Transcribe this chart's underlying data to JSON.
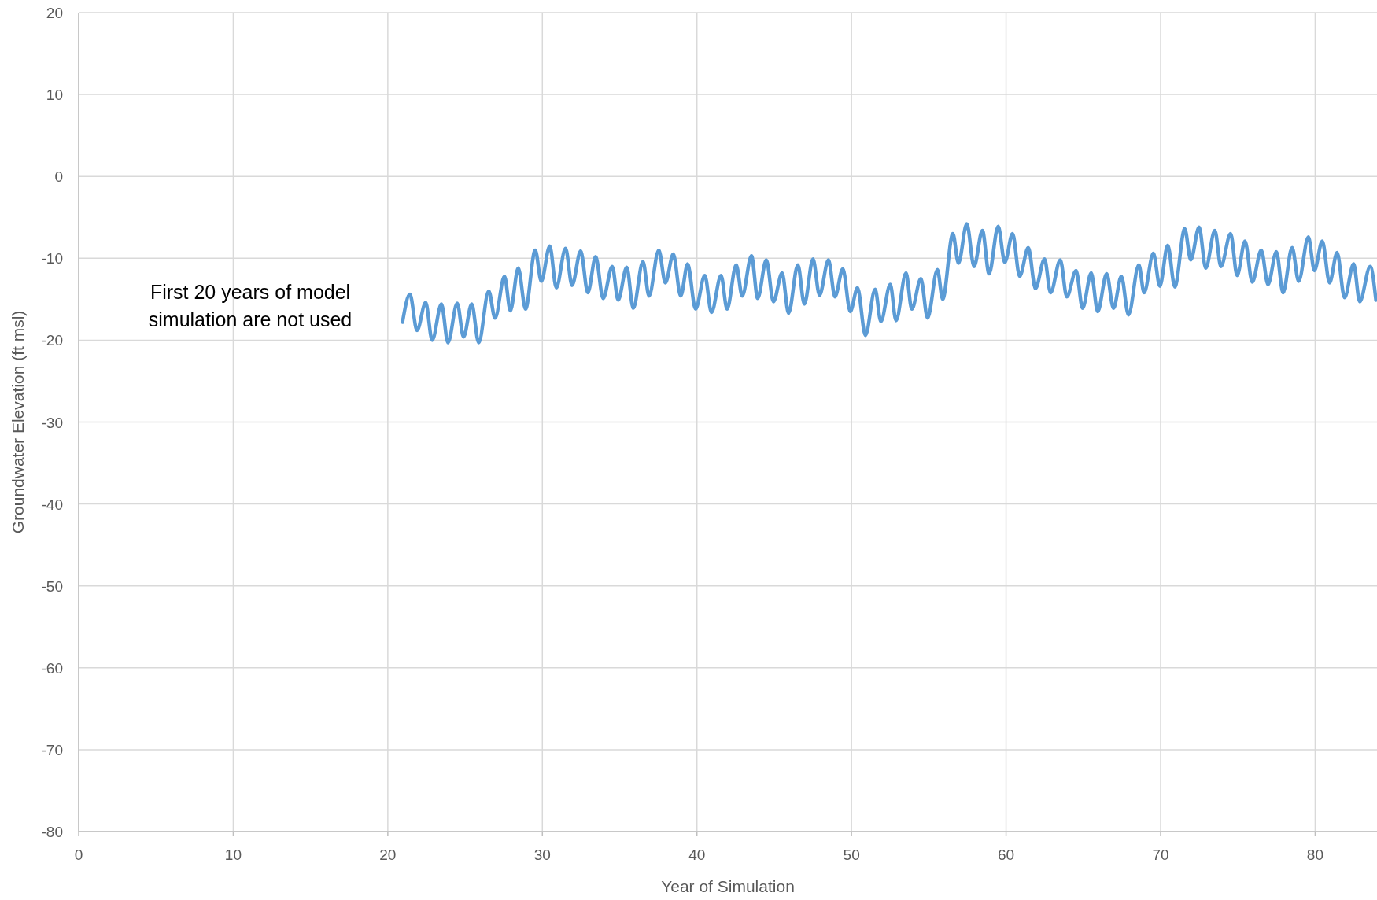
{
  "chart_data": {
    "type": "line",
    "xlabel": "Year of Simulation",
    "ylabel": "Groundwater Elevation (ft msl)",
    "annotations": [
      "First 20 years of model\nsimulation are not used"
    ],
    "xlim": [
      0,
      84
    ],
    "xticks": [
      0,
      10,
      20,
      30,
      40,
      50,
      60,
      70,
      80
    ],
    "ylim": [
      -80,
      20
    ],
    "yticks": [
      -80,
      -70,
      -60,
      -50,
      -40,
      -30,
      -20,
      -10,
      0,
      10,
      20
    ],
    "grid": true,
    "marker": "none",
    "line_style": "solid",
    "series": [
      {
        "color": "#5b9bd5",
        "x": [
          20.95,
          21.43,
          21.89,
          22.45,
          22.87,
          23.47,
          23.89,
          24.49,
          24.9,
          25.43,
          25.88,
          26.53,
          26.94,
          27.55,
          27.93,
          28.44,
          28.91,
          29.54,
          29.93,
          30.48,
          30.9,
          31.5,
          31.92,
          32.48,
          32.94,
          33.45,
          33.93,
          34.52,
          34.9,
          35.46,
          35.88,
          36.51,
          36.9,
          37.53,
          37.96,
          38.47,
          38.95,
          39.4,
          39.91,
          40.51,
          40.94,
          41.56,
          41.95,
          42.54,
          42.93,
          43.53,
          43.93,
          44.49,
          44.95,
          45.51,
          45.93,
          46.53,
          46.95,
          47.51,
          47.93,
          48.51,
          48.93,
          49.44,
          49.92,
          50.39,
          50.9,
          51.53,
          51.9,
          52.51,
          52.88,
          53.53,
          53.9,
          54.49,
          54.92,
          55.56,
          55.9,
          56.56,
          56.92,
          57.46,
          57.93,
          58.47,
          58.9,
          59.49,
          59.92,
          60.42,
          60.88,
          61.44,
          61.9,
          62.49,
          62.88,
          63.51,
          63.93,
          64.53,
          64.95,
          65.51,
          65.93,
          66.51,
          66.95,
          67.46,
          67.92,
          68.59,
          68.93,
          69.53,
          69.95,
          70.46,
          70.92,
          71.56,
          71.95,
          72.49,
          72.92,
          73.51,
          73.9,
          74.53,
          74.95,
          75.46,
          75.93,
          76.51,
          76.95,
          77.49,
          77.92,
          78.51,
          78.93,
          79.56,
          79.95,
          80.46,
          80.93,
          81.42,
          81.9,
          82.49,
          82.88,
          83.56,
          83.93
        ],
        "values": [
          -17.8,
          -14.4,
          -18.8,
          -15.4,
          -20.0,
          -15.6,
          -20.3,
          -15.5,
          -19.6,
          -15.6,
          -20.3,
          -14.0,
          -17.3,
          -12.2,
          -16.4,
          -11.2,
          -16.2,
          -9.0,
          -12.8,
          -8.5,
          -13.6,
          -8.8,
          -13.3,
          -9.1,
          -14.2,
          -9.8,
          -14.9,
          -11.0,
          -15.1,
          -11.1,
          -16.1,
          -10.4,
          -14.6,
          -9.0,
          -13.0,
          -9.5,
          -14.6,
          -10.7,
          -16.2,
          -12.1,
          -16.6,
          -12.1,
          -16.2,
          -10.8,
          -14.6,
          -9.7,
          -14.9,
          -10.2,
          -15.3,
          -11.8,
          -16.7,
          -10.8,
          -15.6,
          -10.1,
          -14.5,
          -10.2,
          -14.7,
          -11.3,
          -16.5,
          -13.6,
          -19.4,
          -13.8,
          -17.7,
          -13.2,
          -17.6,
          -11.8,
          -16.2,
          -12.5,
          -17.3,
          -11.4,
          -15.0,
          -7.0,
          -10.6,
          -5.8,
          -11.0,
          -6.6,
          -11.9,
          -6.1,
          -10.5,
          -7.0,
          -12.2,
          -8.7,
          -13.7,
          -10.1,
          -14.2,
          -10.2,
          -14.7,
          -11.5,
          -16.1,
          -11.8,
          -16.5,
          -11.9,
          -16.1,
          -12.2,
          -16.9,
          -10.8,
          -14.2,
          -9.4,
          -13.4,
          -8.4,
          -13.5,
          -6.4,
          -10.2,
          -6.2,
          -11.2,
          -6.6,
          -11.0,
          -7.0,
          -12.1,
          -7.9,
          -12.9,
          -9.0,
          -13.2,
          -9.2,
          -14.2,
          -8.7,
          -12.8,
          -7.4,
          -11.5,
          -7.9,
          -13.0,
          -9.3,
          -14.8,
          -10.7,
          -15.3,
          -11.0,
          -15.1
        ]
      }
    ]
  }
}
